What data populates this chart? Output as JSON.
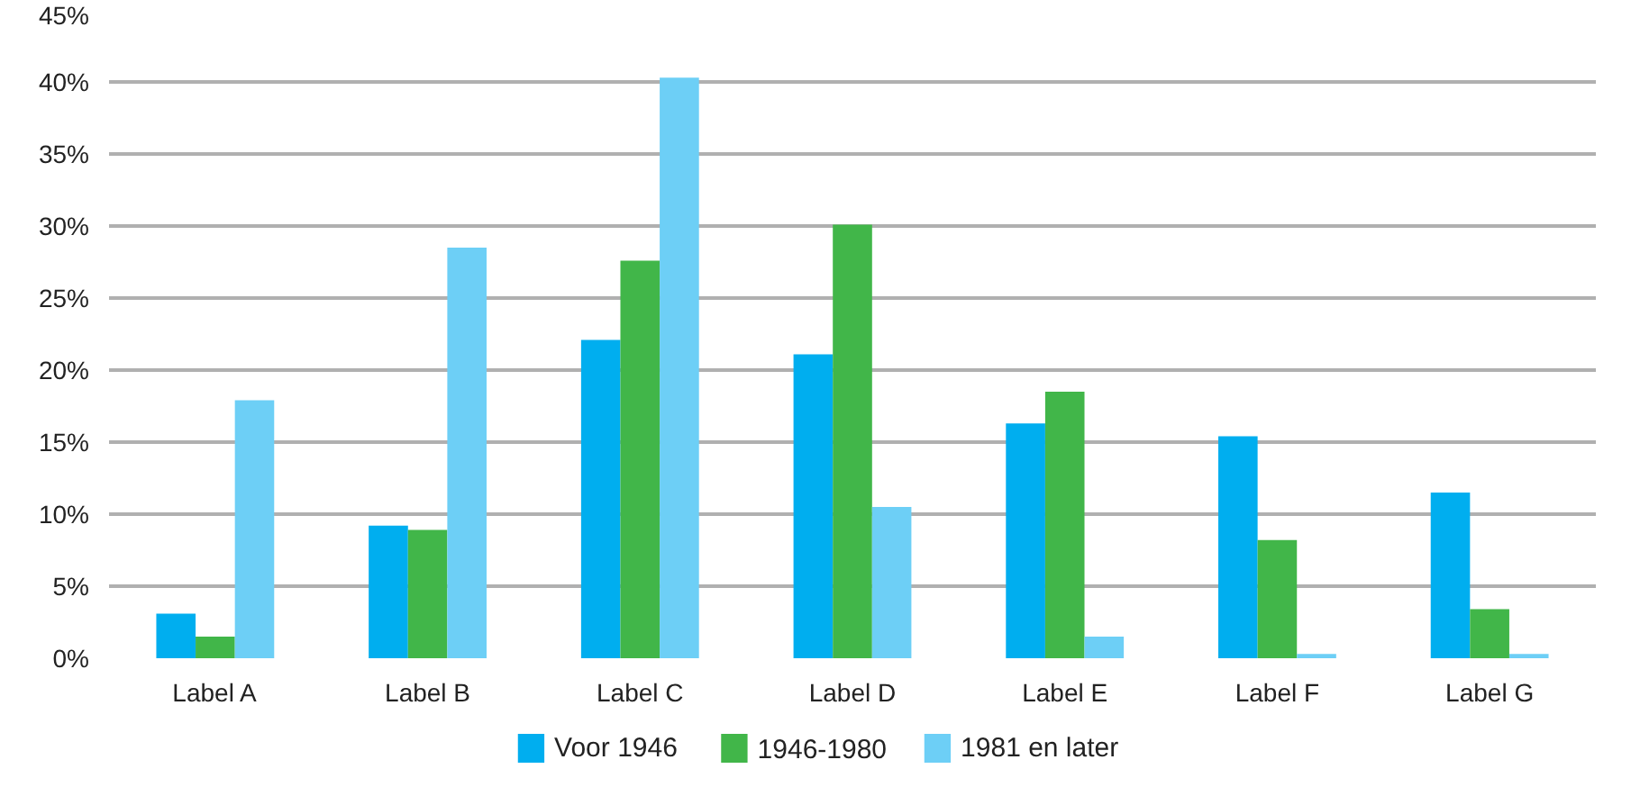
{
  "chart_data": {
    "type": "bar",
    "categories": [
      "Label A",
      "Label B",
      "Label C",
      "Label D",
      "Label E",
      "Label F",
      "Label G"
    ],
    "series": [
      {
        "name": "Voor 1946",
        "color": "#00aeef",
        "values": [
          3.1,
          9.2,
          22.1,
          21.1,
          16.3,
          15.4,
          11.5
        ]
      },
      {
        "name": "1946-1980",
        "color": "#41b649",
        "values": [
          1.5,
          8.9,
          27.6,
          30.1,
          18.5,
          8.2,
          3.4
        ]
      },
      {
        "name": "1981 en later",
        "color": "#6dcff6",
        "values": [
          17.9,
          28.5,
          40.3,
          10.5,
          1.5,
          0.3,
          0.3
        ]
      }
    ],
    "ylim": [
      0,
      45
    ],
    "yticks": [
      {
        "value": 0,
        "label": "0%"
      },
      {
        "value": 5,
        "label": "5%"
      },
      {
        "value": 10,
        "label": "10%"
      },
      {
        "value": 15,
        "label": "15%"
      },
      {
        "value": 20,
        "label": "20%"
      },
      {
        "value": 25,
        "label": "25%"
      },
      {
        "value": 30,
        "label": "30%"
      },
      {
        "value": 35,
        "label": "35%"
      },
      {
        "value": 40,
        "label": "40%"
      },
      {
        "value": 45,
        "label": "45%"
      }
    ],
    "grid": "y",
    "legend": "bottom"
  }
}
